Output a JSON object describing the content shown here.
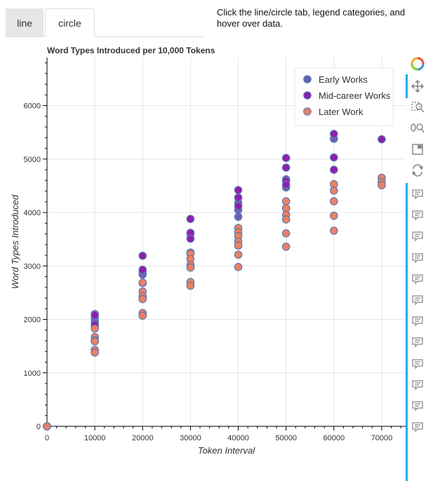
{
  "tabs": {
    "line": "line",
    "circle": "circle",
    "active": "line"
  },
  "instructions": "Click the line/circle tab, legend categories, and hover over data.",
  "colors": {
    "early": "#6b62b8",
    "mid": "#8e1fb0",
    "later": "#ee8060",
    "marker_outline": "#5a78b0",
    "grid": "#e5e5e5",
    "toolbar_accent": "#26aae1"
  },
  "toolbar": {
    "icons": [
      "bokeh-logo-icon",
      "pan-icon",
      "box-zoom-icon",
      "wheel-zoom-icon",
      "save-icon",
      "reset-icon",
      "hover-icon"
    ]
  },
  "chart_data": {
    "type": "scatter",
    "title": "Word Types Introduced per 10,000 Tokens",
    "xlabel": "Token Interval",
    "ylabel": "Word Types Introduced",
    "xlim": [
      0,
      75000
    ],
    "ylim": [
      0,
      6900
    ],
    "xticks": [
      0,
      10000,
      20000,
      30000,
      40000,
      50000,
      60000,
      70000
    ],
    "yticks": [
      0,
      1000,
      2000,
      3000,
      4000,
      5000,
      6000
    ],
    "grid": true,
    "legend_position": "top-right",
    "series": [
      {
        "name": "Early Works",
        "points": [
          [
            0,
            0
          ],
          [
            10000,
            2100
          ],
          [
            10000,
            2030
          ],
          [
            10000,
            1960
          ],
          [
            10000,
            1880
          ],
          [
            20000,
            2900
          ],
          [
            20000,
            2840
          ],
          [
            30000,
            3600
          ],
          [
            30000,
            3250
          ],
          [
            40000,
            4180
          ],
          [
            40000,
            4050
          ],
          [
            40000,
            3920
          ],
          [
            50000,
            4620
          ],
          [
            50000,
            4470
          ],
          [
            60000,
            5380
          ]
        ]
      },
      {
        "name": "Mid-career Works",
        "points": [
          [
            0,
            0
          ],
          [
            10000,
            2080
          ],
          [
            10000,
            1900
          ],
          [
            20000,
            3190
          ],
          [
            20000,
            2930
          ],
          [
            20000,
            2680
          ],
          [
            30000,
            3880
          ],
          [
            30000,
            3620
          ],
          [
            30000,
            3510
          ],
          [
            40000,
            4420
          ],
          [
            40000,
            4280
          ],
          [
            40000,
            4120
          ],
          [
            50000,
            5020
          ],
          [
            50000,
            4840
          ],
          [
            50000,
            4590
          ],
          [
            50000,
            4520
          ],
          [
            60000,
            5470
          ],
          [
            60000,
            5030
          ],
          [
            60000,
            4800
          ],
          [
            70000,
            5370
          ]
        ]
      },
      {
        "name": "Later Work",
        "points": [
          [
            0,
            0
          ],
          [
            10000,
            1830
          ],
          [
            10000,
            1670
          ],
          [
            10000,
            1610
          ],
          [
            10000,
            1590
          ],
          [
            10000,
            1430
          ],
          [
            10000,
            1380
          ],
          [
            20000,
            2690
          ],
          [
            20000,
            2520
          ],
          [
            20000,
            2430
          ],
          [
            20000,
            2380
          ],
          [
            20000,
            2120
          ],
          [
            20000,
            2070
          ],
          [
            30000,
            3230
          ],
          [
            30000,
            3130
          ],
          [
            30000,
            3020
          ],
          [
            30000,
            2970
          ],
          [
            30000,
            2700
          ],
          [
            30000,
            2630
          ],
          [
            40000,
            3710
          ],
          [
            40000,
            3630
          ],
          [
            40000,
            3560
          ],
          [
            40000,
            3460
          ],
          [
            40000,
            3380
          ],
          [
            40000,
            3210
          ],
          [
            40000,
            2980
          ],
          [
            50000,
            4210
          ],
          [
            50000,
            4080
          ],
          [
            50000,
            3960
          ],
          [
            50000,
            3870
          ],
          [
            50000,
            3610
          ],
          [
            50000,
            3360
          ],
          [
            60000,
            4530
          ],
          [
            60000,
            4410
          ],
          [
            60000,
            4210
          ],
          [
            60000,
            3940
          ],
          [
            60000,
            3660
          ],
          [
            70000,
            4650
          ],
          [
            70000,
            4570
          ],
          [
            70000,
            4510
          ]
        ]
      }
    ]
  }
}
